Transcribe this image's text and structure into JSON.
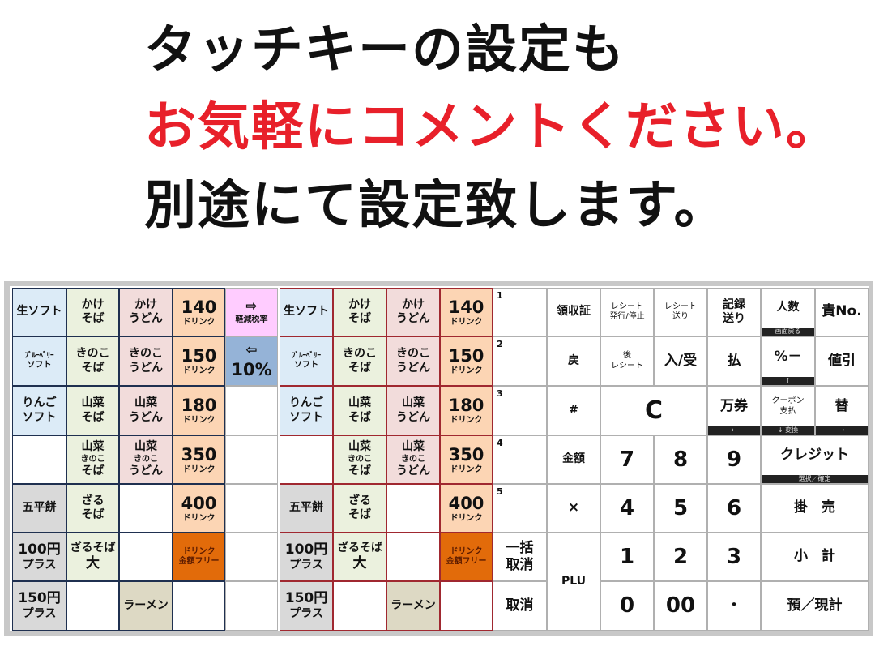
{
  "heading": {
    "line1": "タッチキーの設定も",
    "line2": "お気軽にコメントください。",
    "line3": "別途にて設定致します。",
    "line2_color": "#e8202a"
  },
  "colors": {
    "lightblue": "#dcebf7",
    "green": "#ebf1de",
    "pink": "#f2dcdb",
    "peach": "#fcd5b4",
    "magenta": "#ffccff",
    "blue": "#95b3d7",
    "gray": "#d9d9d9",
    "tan": "#ddd9c4",
    "orange": "#e26b0a",
    "white": "#ffffff"
  },
  "left_grid": [
    [
      {
        "l": [
          "生ソフト"
        ],
        "bg": "lightblue"
      },
      {
        "l": [
          "かけ",
          "そば"
        ],
        "bg": "green"
      },
      {
        "l": [
          "かけ",
          "うどん"
        ],
        "bg": "pink"
      },
      {
        "l": [
          "140",
          "ドリンク"
        ],
        "bg": "peach",
        "price": true
      },
      {
        "l": [
          "⇨",
          "軽減税率"
        ],
        "bg": "magenta",
        "tax": true
      }
    ],
    [
      {
        "l": [
          "ﾌﾞﾙｰﾍﾞﾘｰ",
          "ソフト"
        ],
        "bg": "lightblue",
        "small": true
      },
      {
        "l": [
          "きのこ",
          "そば"
        ],
        "bg": "green"
      },
      {
        "l": [
          "きのこ",
          "うどん"
        ],
        "bg": "pink"
      },
      {
        "l": [
          "150",
          "ドリンク"
        ],
        "bg": "peach",
        "price": true
      },
      {
        "l": [
          "⇦",
          "10%"
        ],
        "bg": "blue",
        "tax2": true
      }
    ],
    [
      {
        "l": [
          "りんご",
          "ソフト"
        ],
        "bg": "lightblue"
      },
      {
        "l": [
          "山菜",
          "そば"
        ],
        "bg": "green"
      },
      {
        "l": [
          "山菜",
          "うどん"
        ],
        "bg": "pink"
      },
      {
        "l": [
          "180",
          "ドリンク"
        ],
        "bg": "peach",
        "price": true
      },
      {
        "l": [],
        "bg": "white"
      }
    ],
    [
      {
        "l": [],
        "bg": "white"
      },
      {
        "l": [
          "山菜",
          "きのこ",
          "そば"
        ],
        "bg": "green",
        "three": true
      },
      {
        "l": [
          "山菜",
          "きのこ",
          "うどん"
        ],
        "bg": "pink",
        "three": true
      },
      {
        "l": [
          "350",
          "ドリンク"
        ],
        "bg": "peach",
        "price": true
      },
      {
        "l": [],
        "bg": "white"
      }
    ],
    [
      {
        "l": [
          "五平餅"
        ],
        "bg": "gray"
      },
      {
        "l": [
          "ざる",
          "そば"
        ],
        "bg": "green"
      },
      {
        "l": [],
        "bg": "white"
      },
      {
        "l": [
          "400",
          "ドリンク"
        ],
        "bg": "peach",
        "price": true
      },
      {
        "l": [],
        "bg": "white"
      }
    ],
    [
      {
        "l": [
          "100円",
          "プラス"
        ],
        "bg": "gray",
        "yen": true
      },
      {
        "l": [
          "ざるそば",
          "大"
        ],
        "bg": "green"
      },
      {
        "l": [],
        "bg": "white"
      },
      {
        "l": [
          "ドリンク",
          "金額フリー"
        ],
        "bg": "orange",
        "free": true
      },
      {
        "l": [],
        "bg": "white"
      }
    ],
    [
      {
        "l": [
          "150円",
          "プラス"
        ],
        "bg": "gray",
        "yen": true
      },
      {
        "l": [],
        "bg": "white"
      },
      {
        "l": [
          "ラーメン"
        ],
        "bg": "tan"
      },
      {
        "l": [],
        "bg": "white"
      },
      {
        "l": [],
        "bg": "white"
      }
    ]
  ],
  "number_column": [
    "1",
    "2",
    "3",
    "4",
    "5",
    [
      "一括",
      "取消"
    ],
    [
      "取消"
    ]
  ],
  "keypad": [
    {
      "l": [
        "領収証"
      ]
    },
    {
      "l": [
        "レシート",
        "発行/停止"
      ],
      "s": true
    },
    {
      "l": [
        "レシート",
        "送り"
      ],
      "s": true
    },
    {
      "l": [
        "記録",
        "送り"
      ]
    },
    {
      "l": [
        "人数"
      ],
      "strip": "画面戻る"
    },
    {
      "l": [
        "責No."
      ],
      "m": true
    },
    {
      "l": [
        "戻"
      ]
    },
    {
      "l": [
        "後",
        "レシート"
      ],
      "s": true
    },
    {
      "l": [
        "入/受"
      ],
      "m": true
    },
    {
      "l": [
        "払"
      ],
      "m": true
    },
    {
      "l": [
        "%－"
      ],
      "m": true,
      "strip": "↑"
    },
    {
      "l": [
        "値引"
      ],
      "m": true
    },
    {
      "l": [
        "#"
      ]
    },
    {
      "l": [
        "C"
      ],
      "k": true
    },
    {
      "l": [
        "万券"
      ],
      "m": true,
      "strip": "←"
    },
    {
      "l": [
        "クーポン",
        "支払"
      ],
      "s": true,
      "strip": "↓ 変換"
    },
    {
      "l": [
        "替"
      ],
      "m": true,
      "strip": "→"
    },
    {
      "l": [
        "金額"
      ]
    },
    {
      "l": [
        "7"
      ],
      "k": true
    },
    {
      "l": [
        "8"
      ],
      "k": true
    },
    {
      "l": [
        "9"
      ],
      "k": true
    },
    {
      "l": [
        "クレジット"
      ],
      "m": true,
      "strip": "選択／確定"
    },
    {
      "l": [
        "×"
      ],
      "m": true
    },
    {
      "l": [
        "4"
      ],
      "k": true
    },
    {
      "l": [
        "5"
      ],
      "k": true
    },
    {
      "l": [
        "6"
      ],
      "k": true
    },
    {
      "l": [
        "掛　売"
      ],
      "m": true
    },
    {
      "l": [
        "PLU"
      ]
    },
    {
      "l": [
        "1"
      ],
      "k": true
    },
    {
      "l": [
        "2"
      ],
      "k": true
    },
    {
      "l": [
        "3"
      ],
      "k": true
    },
    {
      "l": [
        "小　計"
      ],
      "m": true
    },
    {
      "l": [
        "0"
      ],
      "k": true
    },
    {
      "l": [
        "00"
      ],
      "k": true
    },
    {
      "l": [
        "・"
      ],
      "m": true
    },
    {
      "l": [
        "預／現計"
      ],
      "m": true
    }
  ]
}
